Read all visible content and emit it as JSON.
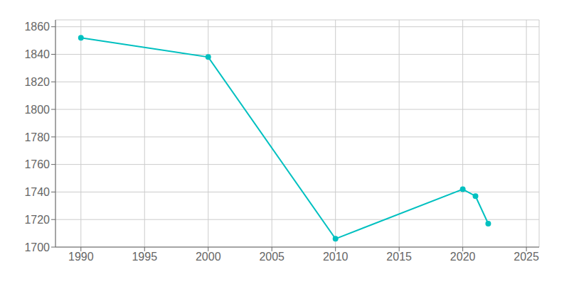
{
  "chart_data": {
    "type": "line",
    "x": [
      1990,
      2000,
      2010,
      2020,
      2021,
      2022
    ],
    "values": [
      1852,
      1838,
      1706,
      1742,
      1737,
      1717
    ],
    "color": "#00C0C0",
    "marker": "circle",
    "xlim": [
      1988,
      2026
    ],
    "ylim": [
      1700,
      1865
    ],
    "xticks": [
      1990,
      1995,
      2000,
      2005,
      2010,
      2015,
      2020,
      2025
    ],
    "yticks": [
      1700,
      1720,
      1740,
      1760,
      1780,
      1800,
      1820,
      1840,
      1860
    ],
    "grid": true
  }
}
